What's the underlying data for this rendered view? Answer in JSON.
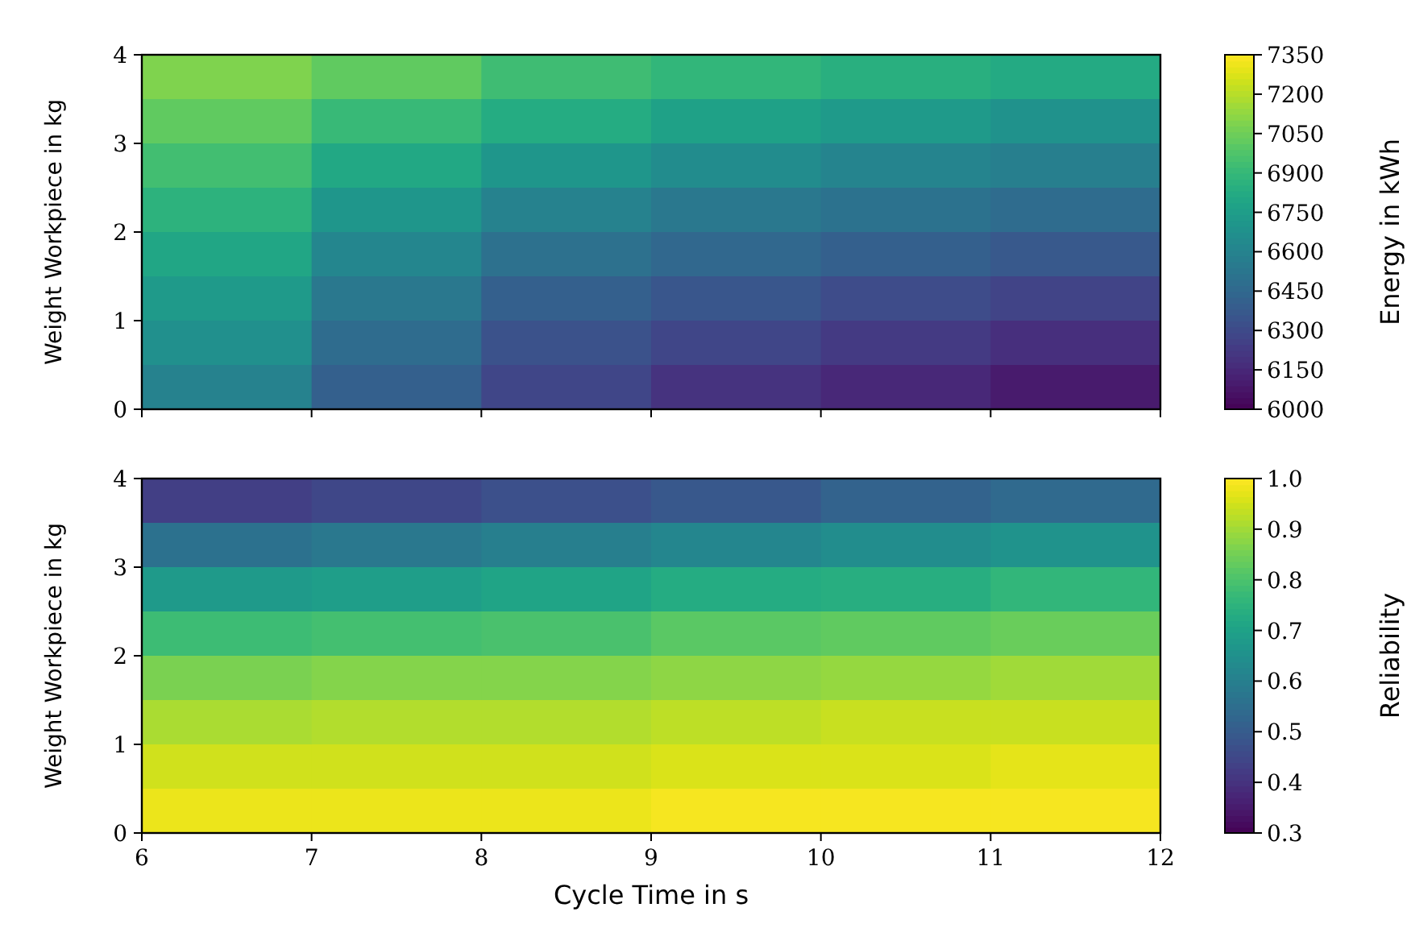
{
  "chart_data": [
    {
      "type": "heatmap",
      "ylabel": "Weight Workpiece in kg",
      "clabel": "Energy in kWh",
      "xlim": [
        6,
        12
      ],
      "ylim": [
        0,
        4
      ],
      "xticks": [
        6,
        7,
        8,
        9,
        10,
        11,
        12
      ],
      "yticks": [
        0,
        1,
        2,
        3,
        4
      ],
      "tick_labels": "y",
      "clim": [
        6000,
        7350
      ],
      "cticks": [
        6000,
        6150,
        6300,
        6450,
        6600,
        6750,
        6900,
        7050,
        7200,
        7350
      ],
      "cells": [
        [
          7090,
          7020,
          6930,
          6890,
          6850,
          6820
        ],
        [
          7020,
          6910,
          6830,
          6770,
          6730,
          6690
        ],
        [
          6940,
          6810,
          6710,
          6650,
          6610,
          6580
        ],
        [
          6870,
          6710,
          6600,
          6540,
          6510,
          6470
        ],
        [
          6800,
          6620,
          6500,
          6450,
          6410,
          6370
        ],
        [
          6730,
          6540,
          6410,
          6360,
          6310,
          6270
        ],
        [
          6670,
          6470,
          6340,
          6280,
          6230,
          6180
        ],
        [
          6600,
          6410,
          6280,
          6200,
          6150,
          6100
        ]
      ]
    },
    {
      "type": "heatmap",
      "xlabel": "Cycle Time in s",
      "ylabel": "Weight Workpiece in kg",
      "clabel": "Reliability",
      "xlim": [
        6,
        12
      ],
      "ylim": [
        0,
        4
      ],
      "xticks": [
        6,
        7,
        8,
        9,
        10,
        11,
        12
      ],
      "yticks": [
        0,
        1,
        2,
        3,
        4
      ],
      "clim": [
        0.3,
        1.0
      ],
      "cticks": [
        {
          "value": 0.3,
          "label": "0.3"
        },
        {
          "value": 0.4,
          "label": "0.4"
        },
        {
          "value": 0.5,
          "label": "0.5"
        },
        {
          "value": 0.6,
          "label": "0.6"
        },
        {
          "value": 0.7,
          "label": "0.7"
        },
        {
          "value": 0.8,
          "label": "0.8"
        },
        {
          "value": 0.9,
          "label": "0.9"
        },
        {
          "value": 1.0,
          "label": "1.0"
        }
      ],
      "cells": [
        [
          0.43,
          0.45,
          0.47,
          0.49,
          0.52,
          0.54
        ],
        [
          0.56,
          0.58,
          0.6,
          0.62,
          0.64,
          0.66
        ],
        [
          0.68,
          0.69,
          0.71,
          0.73,
          0.74,
          0.76
        ],
        [
          0.78,
          0.79,
          0.8,
          0.82,
          0.83,
          0.84
        ],
        [
          0.86,
          0.87,
          0.87,
          0.88,
          0.89,
          0.9
        ],
        [
          0.91,
          0.92,
          0.92,
          0.93,
          0.94,
          0.94
        ],
        [
          0.95,
          0.95,
          0.95,
          0.96,
          0.96,
          0.97
        ],
        [
          0.98,
          0.98,
          0.98,
          0.99,
          0.99,
          0.99
        ]
      ]
    }
  ]
}
